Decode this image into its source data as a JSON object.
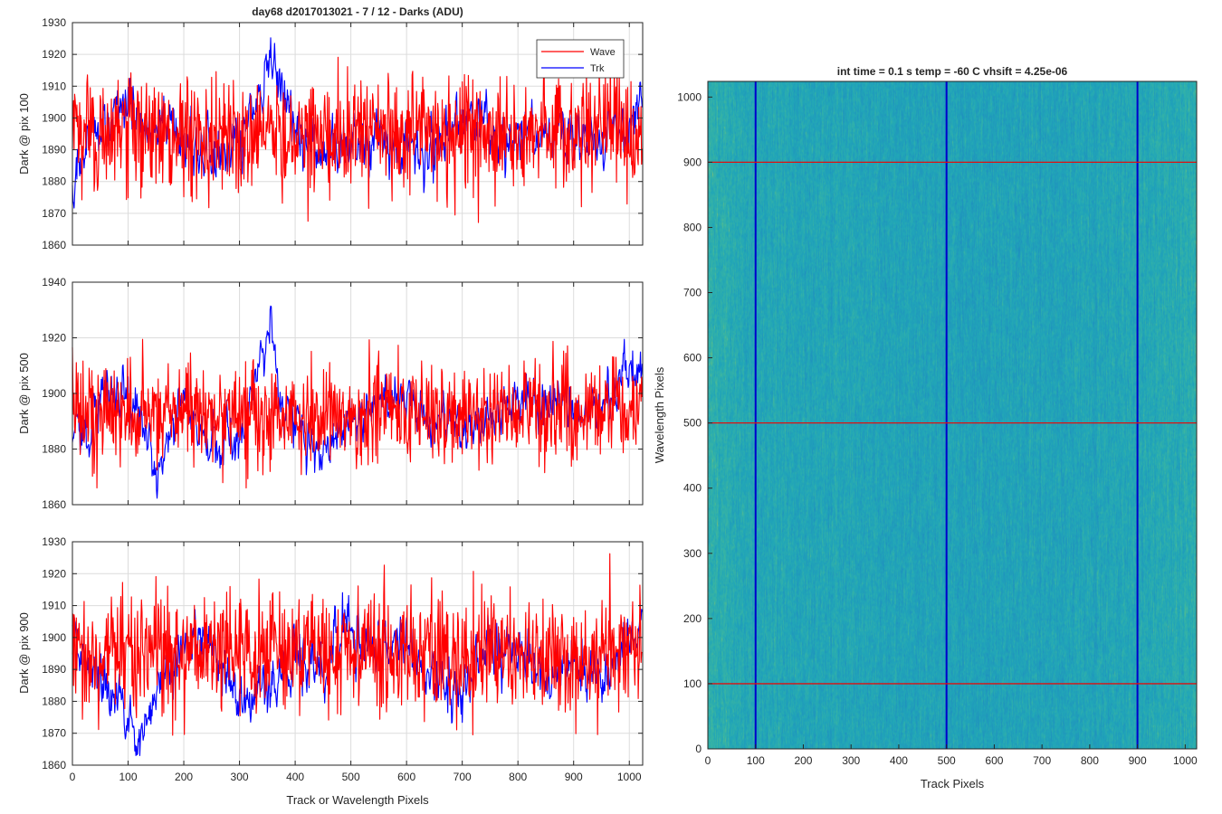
{
  "chart_data": [
    {
      "type": "line",
      "title": "day68 d2017013021 - 7 / 12 - Darks (ADU)",
      "xlabel": "",
      "ylabel": "Dark @ pix 100",
      "xlim": [
        0,
        1024
      ],
      "ylim": [
        1860,
        1930
      ],
      "xticks": [
        0,
        100,
        200,
        300,
        400,
        500,
        600,
        700,
        800,
        900,
        1000
      ],
      "yticks": [
        1860,
        1870,
        1880,
        1890,
        1900,
        1910,
        1920,
        1930
      ],
      "grid": true,
      "legend": {
        "placement": "top-right",
        "entries": [
          "Wave",
          "Trk"
        ]
      },
      "series": [
        {
          "name": "Wave",
          "color": "#ff0000",
          "n_points": 1024,
          "mean": 1895,
          "spread": 9,
          "range": [
            1864,
            1927
          ]
        },
        {
          "name": "Trk",
          "color": "#0000ff",
          "n_points": 1024,
          "mean": 1893,
          "spread": 5,
          "range": [
            1870,
            1926
          ],
          "trend_x": [
            0,
            15,
            30,
            60,
            100,
            150,
            200,
            260,
            300,
            340,
            355,
            360,
            370,
            400,
            450,
            500,
            550,
            600,
            650,
            700,
            750,
            800,
            850,
            900,
            950,
            1000,
            1024
          ],
          "trend_y": [
            1880,
            1884,
            1893,
            1900,
            1904,
            1898,
            1892,
            1888,
            1891,
            1907,
            1917,
            1918,
            1908,
            1896,
            1890,
            1891,
            1891,
            1890,
            1891,
            1900,
            1894,
            1893,
            1894,
            1893,
            1894,
            1895,
            1908
          ]
        }
      ]
    },
    {
      "type": "line",
      "title": "",
      "xlabel": "",
      "ylabel": "Dark @ pix 500",
      "xlim": [
        0,
        1024
      ],
      "ylim": [
        1860,
        1940
      ],
      "xticks": [
        0,
        100,
        200,
        300,
        400,
        500,
        600,
        700,
        800,
        900,
        1000
      ],
      "yticks": [
        1860,
        1880,
        1900,
        1920,
        1940
      ],
      "grid": true,
      "series": [
        {
          "name": "Wave",
          "color": "#ff0000",
          "n_points": 1024,
          "mean": 1893,
          "spread": 9,
          "range": [
            1866,
            1929
          ]
        },
        {
          "name": "Trk",
          "color": "#0000ff",
          "n_points": 1024,
          "mean": 1892,
          "spread": 5,
          "range": [
            1861,
            1934
          ],
          "trend_x": [
            0,
            20,
            60,
            100,
            130,
            150,
            200,
            250,
            300,
            340,
            355,
            360,
            375,
            400,
            450,
            500,
            600,
            650,
            700,
            750,
            800,
            850,
            900,
            950,
            1000,
            1024
          ],
          "trend_y": [
            1890,
            1885,
            1903,
            1900,
            1886,
            1872,
            1895,
            1880,
            1882,
            1915,
            1925,
            1922,
            1898,
            1893,
            1880,
            1893,
            1900,
            1888,
            1888,
            1892,
            1896,
            1898,
            1895,
            1890,
            1912,
            1905
          ]
        }
      ]
    },
    {
      "type": "line",
      "title": "",
      "xlabel": "Track or Wavelength Pixels",
      "ylabel": "Dark @ pix 900",
      "xlim": [
        0,
        1024
      ],
      "ylim": [
        1860,
        1930
      ],
      "xticks": [
        0,
        100,
        200,
        300,
        400,
        500,
        600,
        700,
        800,
        900,
        1000
      ],
      "yticks": [
        1860,
        1870,
        1880,
        1890,
        1900,
        1910,
        1920,
        1930
      ],
      "grid": true,
      "series": [
        {
          "name": "Wave",
          "color": "#ff0000",
          "n_points": 1024,
          "mean": 1895,
          "spread": 9,
          "range": [
            1862,
            1928
          ]
        },
        {
          "name": "Trk",
          "color": "#0000ff",
          "n_points": 1024,
          "mean": 1893,
          "spread": 5,
          "range": [
            1863,
            1922
          ],
          "trend_x": [
            0,
            30,
            60,
            100,
            120,
            160,
            200,
            250,
            300,
            350,
            400,
            450,
            490,
            520,
            560,
            600,
            650,
            700,
            750,
            800,
            850,
            900,
            950,
            1000,
            1024
          ],
          "trend_y": [
            1900,
            1890,
            1885,
            1873,
            1866,
            1887,
            1900,
            1895,
            1880,
            1885,
            1895,
            1888,
            1908,
            1897,
            1895,
            1898,
            1887,
            1885,
            1898,
            1897,
            1886,
            1893,
            1886,
            1897,
            1906
          ]
        }
      ]
    },
    {
      "type": "heatmap",
      "title": "int time = 0.1 s   temp = -60 C   vhsift = 4.25e-06",
      "xlabel": "Track Pixels",
      "ylabel": "Wavelength Pixels",
      "xlim": [
        0,
        1024
      ],
      "ylim": [
        0,
        1024
      ],
      "xticks": [
        0,
        100,
        200,
        300,
        400,
        500,
        600,
        700,
        800,
        900,
        1000
      ],
      "yticks": [
        0,
        100,
        200,
        300,
        400,
        500,
        600,
        700,
        800,
        900,
        1000
      ],
      "colormap": [
        "#1f8fbf",
        "#21a6b8",
        "#3cb7a0",
        "#9ac463"
      ],
      "vertical_markers": {
        "x": [
          100,
          500,
          900
        ],
        "color": "#0000cc"
      },
      "horizontal_markers": {
        "y": [
          100,
          500,
          900
        ],
        "color": "#dd1111"
      }
    }
  ]
}
